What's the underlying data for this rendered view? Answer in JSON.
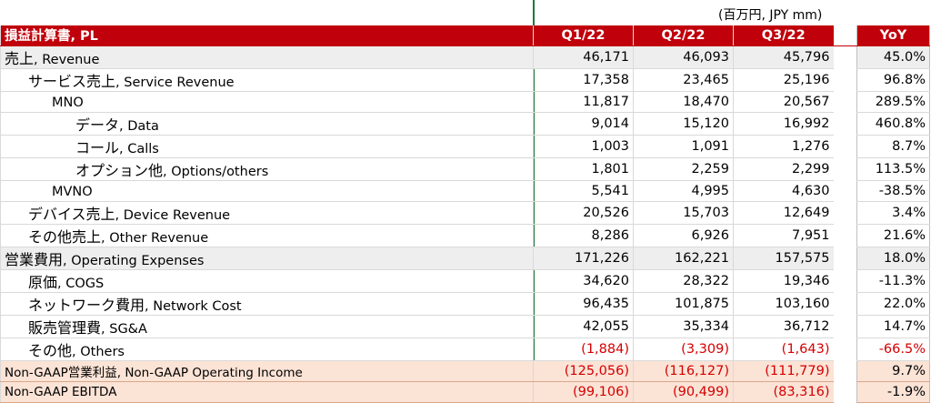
{
  "units": "(百万円, JPY mm)",
  "header": {
    "title": "損益計算書, PL",
    "q1": "Q1/22",
    "q2": "Q2/22",
    "q3": "Q3/22",
    "yoy": "YoY"
  },
  "rows": [
    {
      "jp": "売上",
      "en": ", Revenue",
      "q1": "46,171",
      "q2": "46,093",
      "q3": "45,796",
      "yoy": "45.0%"
    },
    {
      "jp": "サービス売上",
      "en": ", Service Revenue",
      "q1": "17,358",
      "q2": "23,465",
      "q3": "25,196",
      "yoy": "96.8%"
    },
    {
      "jp": "",
      "en": "MNO",
      "q1": "11,817",
      "q2": "18,470",
      "q3": "20,567",
      "yoy": "289.5%"
    },
    {
      "jp": "データ",
      "en": ", Data",
      "q1": "9,014",
      "q2": "15,120",
      "q3": "16,992",
      "yoy": "460.8%"
    },
    {
      "jp": "コール",
      "en": ", Calls",
      "q1": "1,003",
      "q2": "1,091",
      "q3": "1,276",
      "yoy": "8.7%"
    },
    {
      "jp": "オプション他",
      "en": ", Options/others",
      "q1": "1,801",
      "q2": "2,259",
      "q3": "2,299",
      "yoy": "113.5%"
    },
    {
      "jp": "",
      "en": "MVNO",
      "q1": "5,541",
      "q2": "4,995",
      "q3": "4,630",
      "yoy": "-38.5%"
    },
    {
      "jp": "デバイス売上",
      "en": ", Device Revenue",
      "q1": "20,526",
      "q2": "15,703",
      "q3": "12,649",
      "yoy": "3.4%"
    },
    {
      "jp": "その他売上",
      "en": ", Other Revenue",
      "q1": "8,286",
      "q2": "6,926",
      "q3": "7,951",
      "yoy": "21.6%"
    },
    {
      "jp": "営業費用",
      "en": ", Operating Expenses",
      "q1": "171,226",
      "q2": "162,221",
      "q3": "157,575",
      "yoy": "18.0%"
    },
    {
      "jp": "原価",
      "en": ", COGS",
      "q1": "34,620",
      "q2": "28,322",
      "q3": "19,346",
      "yoy": "-11.3%"
    },
    {
      "jp": "ネットワーク費用",
      "en": ", Network Cost",
      "q1": "96,435",
      "q2": "101,875",
      "q3": "103,160",
      "yoy": "22.0%"
    },
    {
      "jp": "販売管理費",
      "en": ", SG&A",
      "q1": "42,055",
      "q2": "35,334",
      "q3": "36,712",
      "yoy": "14.7%"
    },
    {
      "jp": "その他",
      "en": ", Others",
      "q1": "(1,884)",
      "q2": "(3,309)",
      "q3": "(1,643)",
      "yoy": "-66.5%"
    },
    {
      "jp": "Non-GAAP営業利益",
      "en": ", Non-GAAP Operating Income",
      "q1": "(125,056)",
      "q2": "(116,127)",
      "q3": "(111,779)",
      "yoy": "9.7%"
    },
    {
      "jp": "",
      "en": "Non-GAAP EBITDA",
      "q1": "(99,106)",
      "q2": "(90,499)",
      "q3": "(83,316)",
      "yoy": "-1.9%"
    }
  ]
}
